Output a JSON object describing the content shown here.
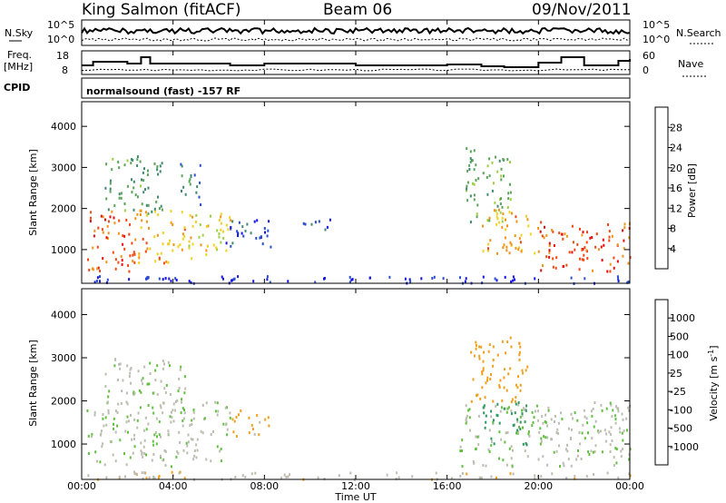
{
  "header": {
    "station": "King Salmon (fitACF)",
    "beam": "Beam 06",
    "date": "09/Nov/2011"
  },
  "noise_panel": {
    "left_label": "N.Sky",
    "right_label": "N.Search",
    "left_ticks": [
      "10^5",
      "10^0"
    ],
    "right_ticks": [
      "10^5",
      "10^0"
    ]
  },
  "freq_panel": {
    "left_label_line1": "Freq.",
    "left_label_line2": "[MHz]",
    "right_label": "Nave",
    "left_ticks": [
      "18",
      "8"
    ],
    "right_ticks": [
      "60",
      "0"
    ]
  },
  "cpid": {
    "label": "CPID",
    "text": "normalsound (fast) -157 RF"
  },
  "colors": {
    "power": [
      "#1515e6",
      "#2a4ed0",
      "#3f8a70",
      "#5aa55a",
      "#9cd040",
      "#f2d21e",
      "#f29418",
      "#f24a14",
      "#e60e0e"
    ],
    "velocity": [
      "#2020c8",
      "#2b6ec0",
      "#2f9a60",
      "#62c040",
      "#bdbdb2",
      "#bdbdb2",
      "#f0a020",
      "#f06818",
      "#e81818"
    ]
  },
  "chart_data": [
    {
      "type": "heatmap",
      "name": "power",
      "x_ticks": [
        "00:00",
        "04:00",
        "08:00",
        "12:00",
        "16:00",
        "20:00",
        "00:00"
      ],
      "xlabel": "Time UT",
      "ylabel": "Slant Range [km]",
      "y_ticks": [
        1000,
        2000,
        3000,
        4000
      ],
      "ylim": [
        180,
        4600
      ],
      "colorbar": {
        "label": "Power [dB]",
        "ticks": [
          4,
          8,
          12,
          16,
          20,
          24,
          28
        ],
        "range": [
          0,
          32
        ]
      },
      "regions": [
        {
          "t": [
            0.2,
            2.3
          ],
          "r": [
            500,
            2000
          ],
          "level": 26
        },
        {
          "t": [
            2.3,
            4.5
          ],
          "r": [
            700,
            2000
          ],
          "level": 22
        },
        {
          "t": [
            4.5,
            6.5
          ],
          "r": [
            800,
            1900
          ],
          "level": 19
        },
        {
          "t": [
            1.0,
            3.5
          ],
          "r": [
            1900,
            3300
          ],
          "level": 11
        },
        {
          "t": [
            4.3,
            5.2
          ],
          "r": [
            2100,
            3200
          ],
          "level": 9
        },
        {
          "t": [
            6.3,
            8.3
          ],
          "r": [
            1000,
            1800
          ],
          "level": 6
        },
        {
          "t": [
            9.5,
            11.0
          ],
          "r": [
            1500,
            1800
          ],
          "level": 5
        },
        {
          "t": [
            16.8,
            18.8
          ],
          "r": [
            1700,
            3500
          ],
          "level": 13
        },
        {
          "t": [
            17.5,
            20.0
          ],
          "r": [
            900,
            2000
          ],
          "level": 22
        },
        {
          "t": [
            20.0,
            24.0
          ],
          "r": [
            500,
            1700
          ],
          "level": 27
        },
        {
          "t": [
            0.0,
            24.0
          ],
          "r": [
            200,
            380
          ],
          "level": 3
        }
      ]
    },
    {
      "type": "heatmap",
      "name": "velocity",
      "x_ticks": [
        "00:00",
        "04:00",
        "08:00",
        "12:00",
        "16:00",
        "20:00",
        "00:00"
      ],
      "xlabel": "Time UT",
      "ylabel": "Slant Range [km]",
      "y_ticks": [
        1000,
        2000,
        3000,
        4000
      ],
      "ylim": [
        180,
        4600
      ],
      "colorbar": {
        "label": "Velocity [m s^-1]",
        "ticks": [
          1000,
          500,
          100,
          25,
          -25,
          -100,
          -500,
          -1000
        ],
        "range": [
          -1250,
          1250
        ]
      },
      "regions": [
        {
          "t": [
            0.2,
            6.5
          ],
          "r": [
            500,
            2000
          ],
          "v": 0
        },
        {
          "t": [
            1.0,
            4.5
          ],
          "r": [
            2000,
            3000
          ],
          "v": 0
        },
        {
          "t": [
            6.5,
            7.5
          ],
          "r": [
            1200,
            1800
          ],
          "v": -300
        },
        {
          "t": [
            7.5,
            8.3
          ],
          "r": [
            1200,
            1700
          ],
          "v": -150
        },
        {
          "t": [
            17.0,
            19.5
          ],
          "r": [
            2000,
            3500
          ],
          "v": -200
        },
        {
          "t": [
            16.5,
            24.0
          ],
          "r": [
            500,
            2000
          ],
          "v": 0
        },
        {
          "t": [
            17.5,
            19.5
          ],
          "r": [
            1000,
            2000
          ],
          "v": 150
        },
        {
          "t": [
            0.0,
            24.0
          ],
          "r": [
            200,
            380
          ],
          "v": -60
        }
      ]
    }
  ]
}
